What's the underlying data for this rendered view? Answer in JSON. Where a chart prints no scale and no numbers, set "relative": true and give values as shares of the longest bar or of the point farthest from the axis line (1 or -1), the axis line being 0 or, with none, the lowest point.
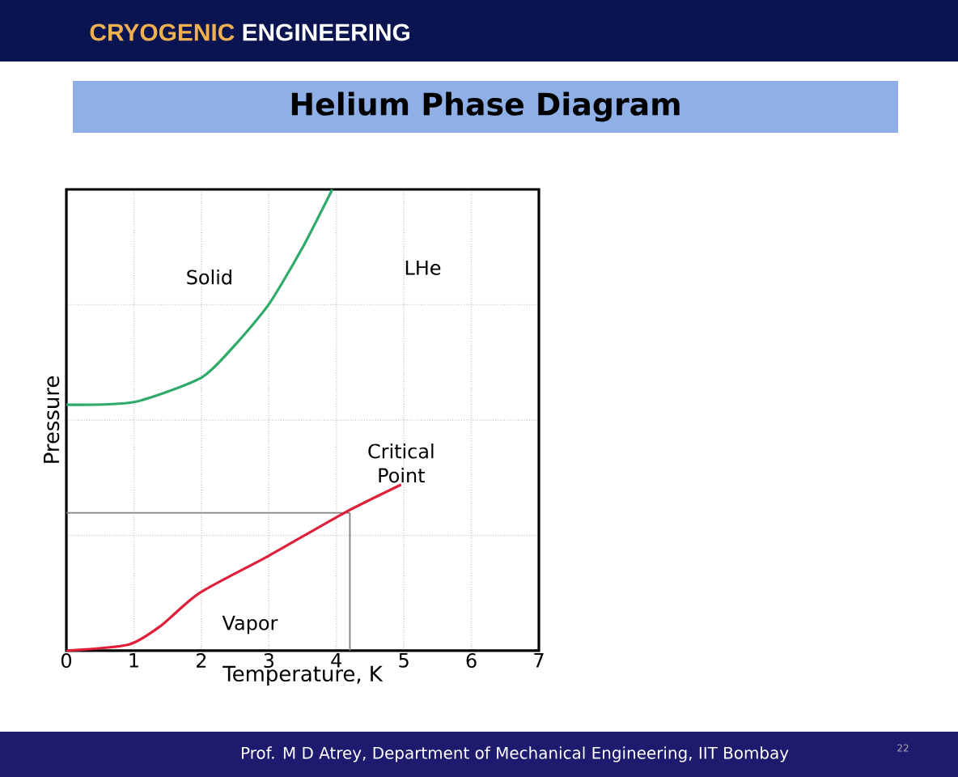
{
  "chart_data": {
    "type": "line",
    "title": "Helium Phase Diagram",
    "xlabel": "Temperature, K",
    "ylabel": "Pressure",
    "relative": true,
    "xlim": [
      0,
      7
    ],
    "xticks": [
      0,
      1,
      2,
      3,
      4,
      5,
      6,
      7
    ],
    "grid": true,
    "series": [
      {
        "color": "#2eaa6a",
        "x": [
          0,
          1,
          2,
          2.5,
          3,
          3.5,
          3.94
        ],
        "values": [
          0.533,
          0.539,
          0.592,
          0.663,
          0.751,
          0.874,
          1.0
        ]
      },
      {
        "color": "#e0203a",
        "x": [
          0,
          0.92,
          1.4,
          1.96,
          3.0,
          4.12,
          4.96
        ],
        "values": [
          0,
          0.013,
          0.054,
          0.124,
          0.206,
          0.299,
          0.36
        ]
      }
    ],
    "ref_lines": [
      {
        "axis": "x",
        "value": 4.2,
        "color": "#808080"
      },
      {
        "axis": "y",
        "value": 0.299,
        "color": "#808080"
      }
    ],
    "annotations": [
      "CRYOGENIC",
      "ENGINEERING",
      "Solid",
      "LHe",
      {
        "text": "Critical Point",
        "x": 4.96,
        "y": 0.36
      },
      "Vapor",
      "Prof. M D Atrey, Department of Mechanical Engineering, IIT Bombay",
      "22"
    ]
  }
}
